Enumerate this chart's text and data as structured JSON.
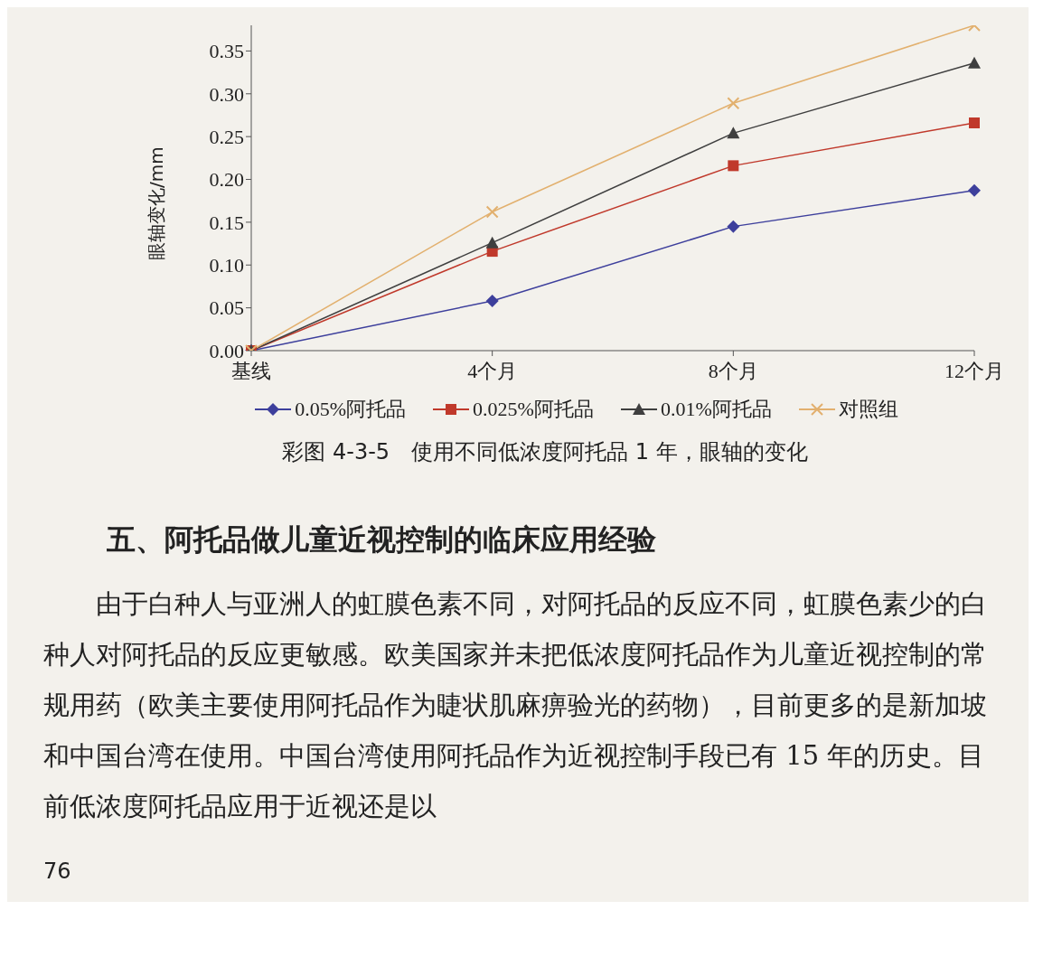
{
  "chart_data": {
    "type": "line",
    "title": "彩图 4-3-5　使用不同低浓度阿托品 1 年，眼轴的变化",
    "ylabel": "眼轴变化/mm",
    "categories": [
      "基线",
      "4个月",
      "8个月",
      "12个月"
    ],
    "series": [
      {
        "name": "0.05%阿托品",
        "color": "#3d3f9c",
        "marker": "diamond",
        "values": [
          0,
          0.058,
          0.145,
          0.187
        ]
      },
      {
        "name": "0.025%阿托品",
        "color": "#c0392b",
        "marker": "square",
        "values": [
          0,
          0.116,
          0.216,
          0.266
        ]
      },
      {
        "name": "0.01%阿托品",
        "color": "#3f3f3f",
        "marker": "triangle",
        "values": [
          0,
          0.126,
          0.254,
          0.336
        ]
      },
      {
        "name": "对照组",
        "color": "#e2b06e",
        "marker": "cross",
        "values": [
          0,
          0.162,
          0.289,
          0.38
        ]
      }
    ],
    "ylim": [
      0,
      0.38
    ],
    "yticks": [
      {
        "value": 0,
        "label": "0.00"
      },
      {
        "value": 0.05,
        "label": "0.05"
      },
      {
        "value": 0.1,
        "label": "0.10"
      },
      {
        "value": 0.15,
        "label": "0.15"
      },
      {
        "value": 0.2,
        "label": "0.20"
      },
      {
        "value": 0.25,
        "label": "0.25"
      },
      {
        "value": 0.3,
        "label": "0.30"
      },
      {
        "value": 0.35,
        "label": "0.35"
      }
    ],
    "grid": false,
    "legend": "bottom",
    "line_style": "solid",
    "annotations": [
      "五、阿托品做儿童近视控制的临床应用经验",
      "由于白种人与亚洲人的虹膜色素不同，对阿托品的反应不同，虹膜色素少的白种人对阿托品的反应更敏感。欧美国家并未把低浓度阿托品作为儿童近视控制的常规用药（欧美主要使用阿托品作为睫状肌麻痹验光的药物），目前更多的是新加坡和中国台湾在使用。中国台湾使用阿托品作为近视控制手段已有 15 年的历史。目前低浓度阿托品应用于近视还是以",
      "76"
    ]
  }
}
